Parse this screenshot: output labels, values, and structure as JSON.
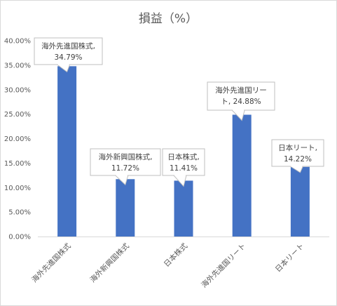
{
  "chart_data": {
    "type": "bar",
    "title": "損益（%）",
    "categories": [
      "海外先進国株式",
      "海外新興国株式",
      "日本株式",
      "海外先進国リート",
      "日本リート"
    ],
    "values": [
      34.79,
      11.72,
      11.41,
      24.88,
      14.22
    ],
    "ylim": [
      0,
      40
    ],
    "yticks": [
      "0.00%",
      "5.00%",
      "10.00%",
      "15.00%",
      "20.00%",
      "25.00%",
      "30.00%",
      "35.00%",
      "40.00%"
    ],
    "data_labels": [
      [
        "海外先進国株式,",
        "34.79%"
      ],
      [
        "海外新興国株式,",
        "11.72%"
      ],
      [
        "日本株式,",
        "11.41%"
      ],
      [
        "海外先進国リー",
        "ト, 24.88%"
      ],
      [
        "日本リート,",
        "14.22%"
      ]
    ],
    "bar_color": "#4472c4",
    "grid": false,
    "legend": "none"
  }
}
